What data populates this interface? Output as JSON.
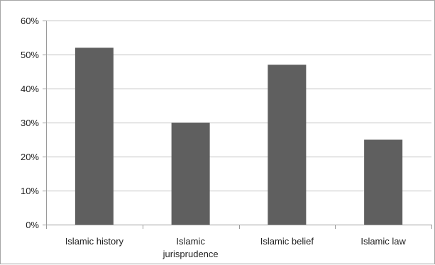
{
  "chart_data": {
    "type": "bar",
    "title": "",
    "xlabel": "",
    "ylabel": "",
    "categories": [
      [
        "Islamic history"
      ],
      [
        "Islamic",
        "jurisprudence"
      ],
      [
        "Islamic belief"
      ],
      [
        "Islamic law"
      ]
    ],
    "values": [
      52,
      30,
      47,
      25
    ],
    "value_unit": "percent",
    "ylim": [
      0,
      60
    ],
    "yticks": [
      0,
      10,
      20,
      30,
      40,
      50,
      60
    ],
    "ytick_labels": [
      "0%",
      "10%",
      "20%",
      "30%",
      "40%",
      "50%",
      "60%"
    ],
    "grid": true,
    "legend": "none",
    "colors": {
      "bar": "#5f5f5f",
      "grid": "#bfbfbf",
      "axis": "#9a9a9a"
    }
  }
}
